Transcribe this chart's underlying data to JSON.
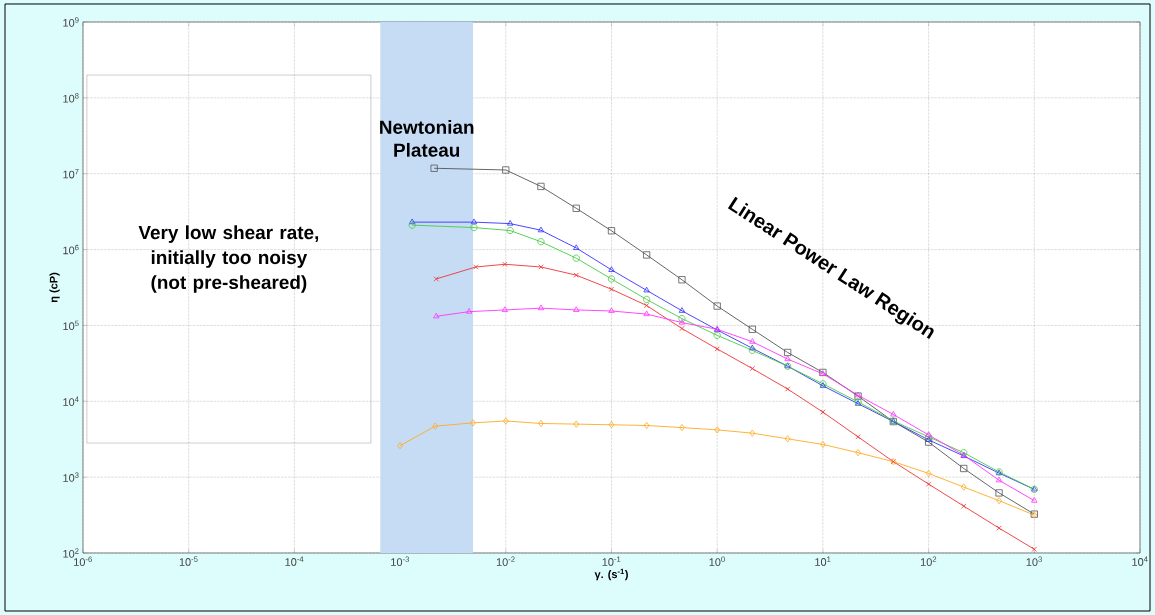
{
  "chart_data": {
    "type": "line",
    "xlabel": "γ. (s$^{-1}$)",
    "ylabel": "η (cP)",
    "log": "xy",
    "grid": true,
    "line_style": "solid",
    "xlim": [
      1e-06,
      10000.0
    ],
    "ylim": [
      100,
      1000000000.0
    ],
    "xticks": [
      {
        "value": 1e-06,
        "label": "10$^{-6}$"
      },
      {
        "value": 1e-05,
        "label": "10$^{-5}$"
      },
      {
        "value": 0.0001,
        "label": "10$^{-4}$"
      },
      {
        "value": 0.001,
        "label": "10$^{-3}$"
      },
      {
        "value": 0.01,
        "label": "10$^{-2}$"
      },
      {
        "value": 0.1,
        "label": "10$^{-1}$"
      },
      {
        "value": 1,
        "label": "10$^{0}$"
      },
      {
        "value": 10,
        "label": "10$^{1}$"
      },
      {
        "value": 100,
        "label": "10$^{2}$"
      },
      {
        "value": 1000,
        "label": "10$^{3}$"
      },
      {
        "value": 10000,
        "label": "10$^{4}$"
      }
    ],
    "yticks": [
      {
        "value": 100,
        "label": "10$^{2}$"
      },
      {
        "value": 1000,
        "label": "10$^{3}$"
      },
      {
        "value": 10000,
        "label": "10$^{4}$"
      },
      {
        "value": 100000,
        "label": "10$^{5}$"
      },
      {
        "value": 1000000,
        "label": "10$^{6}$"
      },
      {
        "value": 10000000,
        "label": "10$^{7}$"
      },
      {
        "value": 100000000,
        "label": "10$^{8}$"
      },
      {
        "value": 1000000000,
        "label": "10$^{9}$"
      }
    ],
    "bands": [
      {
        "axis": "x",
        "from": 0.00065,
        "to": 0.0049,
        "label": "Newtonian Plateau",
        "color": "#c6dcf5"
      }
    ],
    "annotations": [
      "Very low shear rate, initially too noisy (not pre-sheared)",
      "Linear Power Law Region"
    ],
    "series": [
      {
        "color": "#555555",
        "marker": "square",
        "x": [
          0.0021,
          0.01,
          0.0215,
          0.0464,
          0.1,
          0.215,
          0.464,
          1,
          2.15,
          4.64,
          10,
          21.5,
          46.4,
          100,
          215,
          464,
          1000
        ],
        "values": [
          11800000,
          11200000,
          6800000,
          3500000,
          1770000,
          850000,
          400000,
          180000,
          89000,
          44000,
          24000,
          11700,
          5400,
          2900,
          1300,
          620,
          325
        ]
      },
      {
        "color": "#3333ff",
        "marker": "triangle",
        "x": [
          0.0013,
          0.005,
          0.011,
          0.0215,
          0.0464,
          0.1,
          0.215,
          0.464,
          1,
          2.15,
          4.64,
          10,
          21.5,
          46.4,
          100,
          215,
          464,
          1000
        ],
        "values": [
          2300000,
          2300000,
          2200000,
          1800000,
          1050000,
          540000,
          290000,
          156000,
          87000,
          50000,
          29000,
          16000,
          9300,
          5400,
          3100,
          1900,
          1130,
          690
        ]
      },
      {
        "color": "#44cc44",
        "marker": "circle",
        "x": [
          0.0013,
          0.005,
          0.011,
          0.0215,
          0.0464,
          0.1,
          0.215,
          0.464,
          1,
          2.15,
          4.64,
          10,
          21.5,
          46.4,
          100,
          215,
          464,
          1000
        ],
        "values": [
          2100000,
          1950000,
          1780000,
          1270000,
          770000,
          410000,
          220000,
          123000,
          74000,
          47000,
          29000,
          17000,
          9800,
          5500,
          3400,
          2100,
          1170,
          690
        ]
      },
      {
        "color": "#ee3333",
        "marker": "cross",
        "x": [
          0.0022,
          0.0052,
          0.0098,
          0.0215,
          0.0464,
          0.1,
          0.215,
          0.464,
          1,
          2.15,
          4.64,
          10,
          21.5,
          46.4,
          100,
          215,
          464,
          1000
        ],
        "values": [
          410000,
          590000,
          640000,
          590000,
          460000,
          300000,
          183000,
          91000,
          49000,
          27000,
          14500,
          7200,
          3400,
          1600,
          810,
          415,
          213,
          112
        ]
      },
      {
        "color": "#ff33ff",
        "marker": "triangle",
        "x": [
          0.0022,
          0.0045,
          0.0098,
          0.0215,
          0.0464,
          0.1,
          0.215,
          0.464,
          1,
          2.15,
          4.64,
          10,
          21.5,
          46.4,
          100,
          215,
          464,
          1000
        ],
        "values": [
          132000,
          152000,
          160000,
          169000,
          160000,
          155000,
          141000,
          109000,
          89000,
          61000,
          36000,
          23000,
          12000,
          6700,
          3600,
          1950,
          910,
          490
        ]
      },
      {
        "color": "#ffaa22",
        "marker": "diamond",
        "x": [
          0.001,
          0.00215,
          0.0049,
          0.01,
          0.0215,
          0.0464,
          0.1,
          0.215,
          0.464,
          1,
          2.15,
          4.64,
          10,
          21.5,
          46.4,
          100,
          215,
          464,
          1000
        ],
        "values": [
          2600,
          4700,
          5200,
          5500,
          5100,
          5000,
          4900,
          4800,
          4500,
          4200,
          3800,
          3200,
          2700,
          2100,
          1600,
          1120,
          740,
          490,
          316
        ]
      }
    ]
  }
}
